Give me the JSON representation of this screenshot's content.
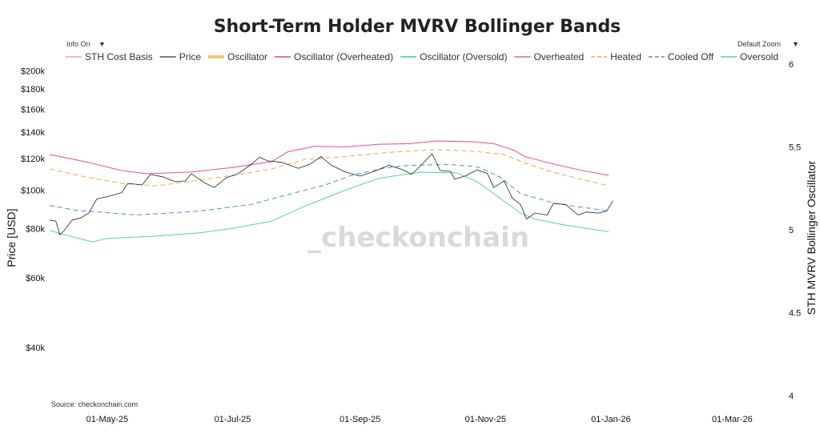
{
  "chart_data": {
    "type": "line",
    "title": "Short-Term Holder MVRV Bollinger Bands",
    "ylabel": "Price [USD]",
    "y2label": "STH MVRV Bollinger Oscillator",
    "source": "Source: checkonchain.com",
    "watermark": "_checkonchain",
    "controls": {
      "info": "Info On",
      "info_caret": "▼",
      "zoom": "Default Zoom",
      "zoom_caret": "▼"
    },
    "yscale": "log",
    "ylim": [
      30000,
      210000
    ],
    "y2lim": [
      4,
      6
    ],
    "x_ticks": [
      {
        "date": "2025-05-01",
        "label": "01-May-25"
      },
      {
        "date": "2025-07-01",
        "label": "01-Jul-25"
      },
      {
        "date": "2025-09-01",
        "label": "01-Sep-25"
      },
      {
        "date": "2025-11-01",
        "label": "01-Nov-25"
      },
      {
        "date": "2026-01-01",
        "label": "01-Jan-26"
      },
      {
        "date": "2026-03-01",
        "label": "01-Mar-26"
      }
    ],
    "y_ticks": [
      {
        "value": 200000,
        "label": "$200k"
      },
      {
        "value": 180000,
        "label": "$180k"
      },
      {
        "value": 160000,
        "label": "$160k"
      },
      {
        "value": 140000,
        "label": "$140k"
      },
      {
        "value": 120000,
        "label": "$120k"
      },
      {
        "value": 100000,
        "label": "$100k"
      },
      {
        "value": 80000,
        "label": "$80k"
      },
      {
        "value": 60000,
        "label": "$60k"
      },
      {
        "value": 40000,
        "label": "$40k"
      }
    ],
    "y2_ticks": [
      {
        "value": 6,
        "label": "6"
      },
      {
        "value": 5.5,
        "label": "5.5"
      },
      {
        "value": 5,
        "label": "5"
      },
      {
        "value": 4.5,
        "label": "4.5"
      },
      {
        "value": 4,
        "label": "4"
      }
    ],
    "legend": [
      {
        "label": "STH Cost Basis",
        "color": "#f4a3b4",
        "dash": "solid",
        "thick": false
      },
      {
        "label": "Price",
        "color": "#555555",
        "dash": "solid",
        "thick": false
      },
      {
        "label": "Oscillator",
        "color": "#f7c56b",
        "dash": "solid",
        "thick": true
      },
      {
        "label": "Oscillator (Overheated)",
        "color": "#e8495f",
        "dash": "solid",
        "thick": false
      },
      {
        "label": "Oscillator (Oversold)",
        "color": "#3fcf83",
        "dash": "solid",
        "thick": false
      },
      {
        "label": "Overheated",
        "color": "#e85a9c",
        "dash": "solid",
        "thick": false
      },
      {
        "label": "Heated",
        "color": "#f0a450",
        "dash": "dash",
        "thick": false
      },
      {
        "label": "Cooled Off",
        "color": "#4a8fd9",
        "dash": "dash",
        "thick": false
      },
      {
        "label": "Oversold",
        "color": "#55d39a",
        "dash": "solid",
        "thick": false
      }
    ],
    "series": [
      {
        "name": "Overheated",
        "color": "#e85a9c",
        "dash": "solid",
        "width": 1.1,
        "points": [
          [
            "2025-04-03",
            123000
          ],
          [
            "2025-04-20",
            118000
          ],
          [
            "2025-05-08",
            112000
          ],
          [
            "2025-05-20",
            110000
          ],
          [
            "2025-06-10",
            111000
          ],
          [
            "2025-07-01",
            114000
          ],
          [
            "2025-07-20",
            118000
          ],
          [
            "2025-07-28",
            125000
          ],
          [
            "2025-08-10",
            129000
          ],
          [
            "2025-08-25",
            128500
          ],
          [
            "2025-09-10",
            130500
          ],
          [
            "2025-09-25",
            131000
          ],
          [
            "2025-10-08",
            133000
          ],
          [
            "2025-10-25",
            132500
          ],
          [
            "2025-11-05",
            131000
          ],
          [
            "2025-11-15",
            126000
          ],
          [
            "2025-11-20",
            121500
          ],
          [
            "2025-12-05",
            116000
          ],
          [
            "2025-12-20",
            111500
          ],
          [
            "2025-12-31",
            109000
          ]
        ]
      },
      {
        "name": "Heated",
        "color": "#f0a450",
        "dash": "dash",
        "width": 1.0,
        "points": [
          [
            "2025-04-03",
            113000
          ],
          [
            "2025-04-20",
            108000
          ],
          [
            "2025-05-08",
            104000
          ],
          [
            "2025-05-25",
            102500
          ],
          [
            "2025-06-15",
            106000
          ],
          [
            "2025-07-01",
            109000
          ],
          [
            "2025-07-20",
            113000
          ],
          [
            "2025-08-05",
            119500
          ],
          [
            "2025-08-25",
            121500
          ],
          [
            "2025-09-15",
            124500
          ],
          [
            "2025-10-08",
            126500
          ],
          [
            "2025-10-25",
            125500
          ],
          [
            "2025-11-10",
            123000
          ],
          [
            "2025-11-20",
            117000
          ],
          [
            "2025-12-05",
            110500
          ],
          [
            "2025-12-31",
            102500
          ]
        ]
      },
      {
        "name": "Cooled Off",
        "color": "#4a8fd9",
        "dash": "dash",
        "width": 1.0,
        "points": [
          [
            "2025-04-03",
            91500
          ],
          [
            "2025-04-15",
            89000
          ],
          [
            "2025-05-15",
            86500
          ],
          [
            "2025-06-15",
            88500
          ],
          [
            "2025-07-10",
            92000
          ],
          [
            "2025-07-25",
            96500
          ],
          [
            "2025-08-15",
            103000
          ],
          [
            "2025-08-28",
            109000
          ],
          [
            "2025-09-12",
            113500
          ],
          [
            "2025-09-25",
            115500
          ],
          [
            "2025-10-15",
            116000
          ],
          [
            "2025-10-28",
            114500
          ],
          [
            "2025-11-08",
            108000
          ],
          [
            "2025-11-18",
            98000
          ],
          [
            "2025-12-05",
            92500
          ],
          [
            "2025-12-31",
            88500
          ]
        ]
      },
      {
        "name": "Oversold",
        "color": "#55d39a",
        "dash": "solid",
        "width": 1.0,
        "points": [
          [
            "2025-04-03",
            79000
          ],
          [
            "2025-04-15",
            76000
          ],
          [
            "2025-04-24",
            74000
          ],
          [
            "2025-05-01",
            75500
          ],
          [
            "2025-05-25",
            76500
          ],
          [
            "2025-06-15",
            78000
          ],
          [
            "2025-07-01",
            80000
          ],
          [
            "2025-07-20",
            83500
          ],
          [
            "2025-08-05",
            91000
          ],
          [
            "2025-08-25",
            100000
          ],
          [
            "2025-09-10",
            107000
          ],
          [
            "2025-09-30",
            111000
          ],
          [
            "2025-10-18",
            110500
          ],
          [
            "2025-10-28",
            105000
          ],
          [
            "2025-11-08",
            95500
          ],
          [
            "2025-11-18",
            87500
          ],
          [
            "2025-11-25",
            84500
          ],
          [
            "2025-12-10",
            81500
          ],
          [
            "2025-12-31",
            78500
          ]
        ]
      },
      {
        "name": "Price",
        "color": "#222222",
        "dash": "solid",
        "width": 0.8,
        "points": [
          [
            "2025-04-03",
            84000
          ],
          [
            "2025-04-06",
            83500
          ],
          [
            "2025-04-08",
            77000
          ],
          [
            "2025-04-10",
            79000
          ],
          [
            "2025-04-14",
            84000
          ],
          [
            "2025-04-18",
            85000
          ],
          [
            "2025-04-22",
            87500
          ],
          [
            "2025-04-26",
            95000
          ],
          [
            "2025-05-02",
            96500
          ],
          [
            "2025-05-08",
            98500
          ],
          [
            "2025-05-11",
            104000
          ],
          [
            "2025-05-18",
            103000
          ],
          [
            "2025-05-22",
            109500
          ],
          [
            "2025-05-28",
            108000
          ],
          [
            "2025-06-03",
            105000
          ],
          [
            "2025-06-08",
            105500
          ],
          [
            "2025-06-11",
            110000
          ],
          [
            "2025-06-17",
            104500
          ],
          [
            "2025-06-22",
            101500
          ],
          [
            "2025-06-28",
            107500
          ],
          [
            "2025-07-03",
            109500
          ],
          [
            "2025-07-10",
            116000
          ],
          [
            "2025-07-14",
            121000
          ],
          [
            "2025-07-18",
            118500
          ],
          [
            "2025-07-25",
            117500
          ],
          [
            "2025-08-02",
            113500
          ],
          [
            "2025-08-08",
            116500
          ],
          [
            "2025-08-13",
            121500
          ],
          [
            "2025-08-18",
            115500
          ],
          [
            "2025-08-25",
            111000
          ],
          [
            "2025-09-01",
            108500
          ],
          [
            "2025-09-08",
            111500
          ],
          [
            "2025-09-15",
            115500
          ],
          [
            "2025-09-22",
            112500
          ],
          [
            "2025-09-26",
            109500
          ],
          [
            "2025-10-01",
            116000
          ],
          [
            "2025-10-06",
            123500
          ],
          [
            "2025-10-10",
            112000
          ],
          [
            "2025-10-15",
            111500
          ],
          [
            "2025-10-17",
            106500
          ],
          [
            "2025-10-22",
            108500
          ],
          [
            "2025-10-28",
            112500
          ],
          [
            "2025-11-02",
            110000
          ],
          [
            "2025-11-05",
            101500
          ],
          [
            "2025-11-10",
            105500
          ],
          [
            "2025-11-14",
            95500
          ],
          [
            "2025-11-18",
            92000
          ],
          [
            "2025-11-21",
            84500
          ],
          [
            "2025-11-25",
            87500
          ],
          [
            "2025-12-01",
            86500
          ],
          [
            "2025-12-04",
            92500
          ],
          [
            "2025-12-10",
            92000
          ],
          [
            "2025-12-16",
            86500
          ],
          [
            "2025-12-20",
            88000
          ],
          [
            "2025-12-26",
            87500
          ],
          [
            "2025-12-30",
            88500
          ],
          [
            "2026-01-02",
            94000
          ]
        ]
      }
    ]
  }
}
